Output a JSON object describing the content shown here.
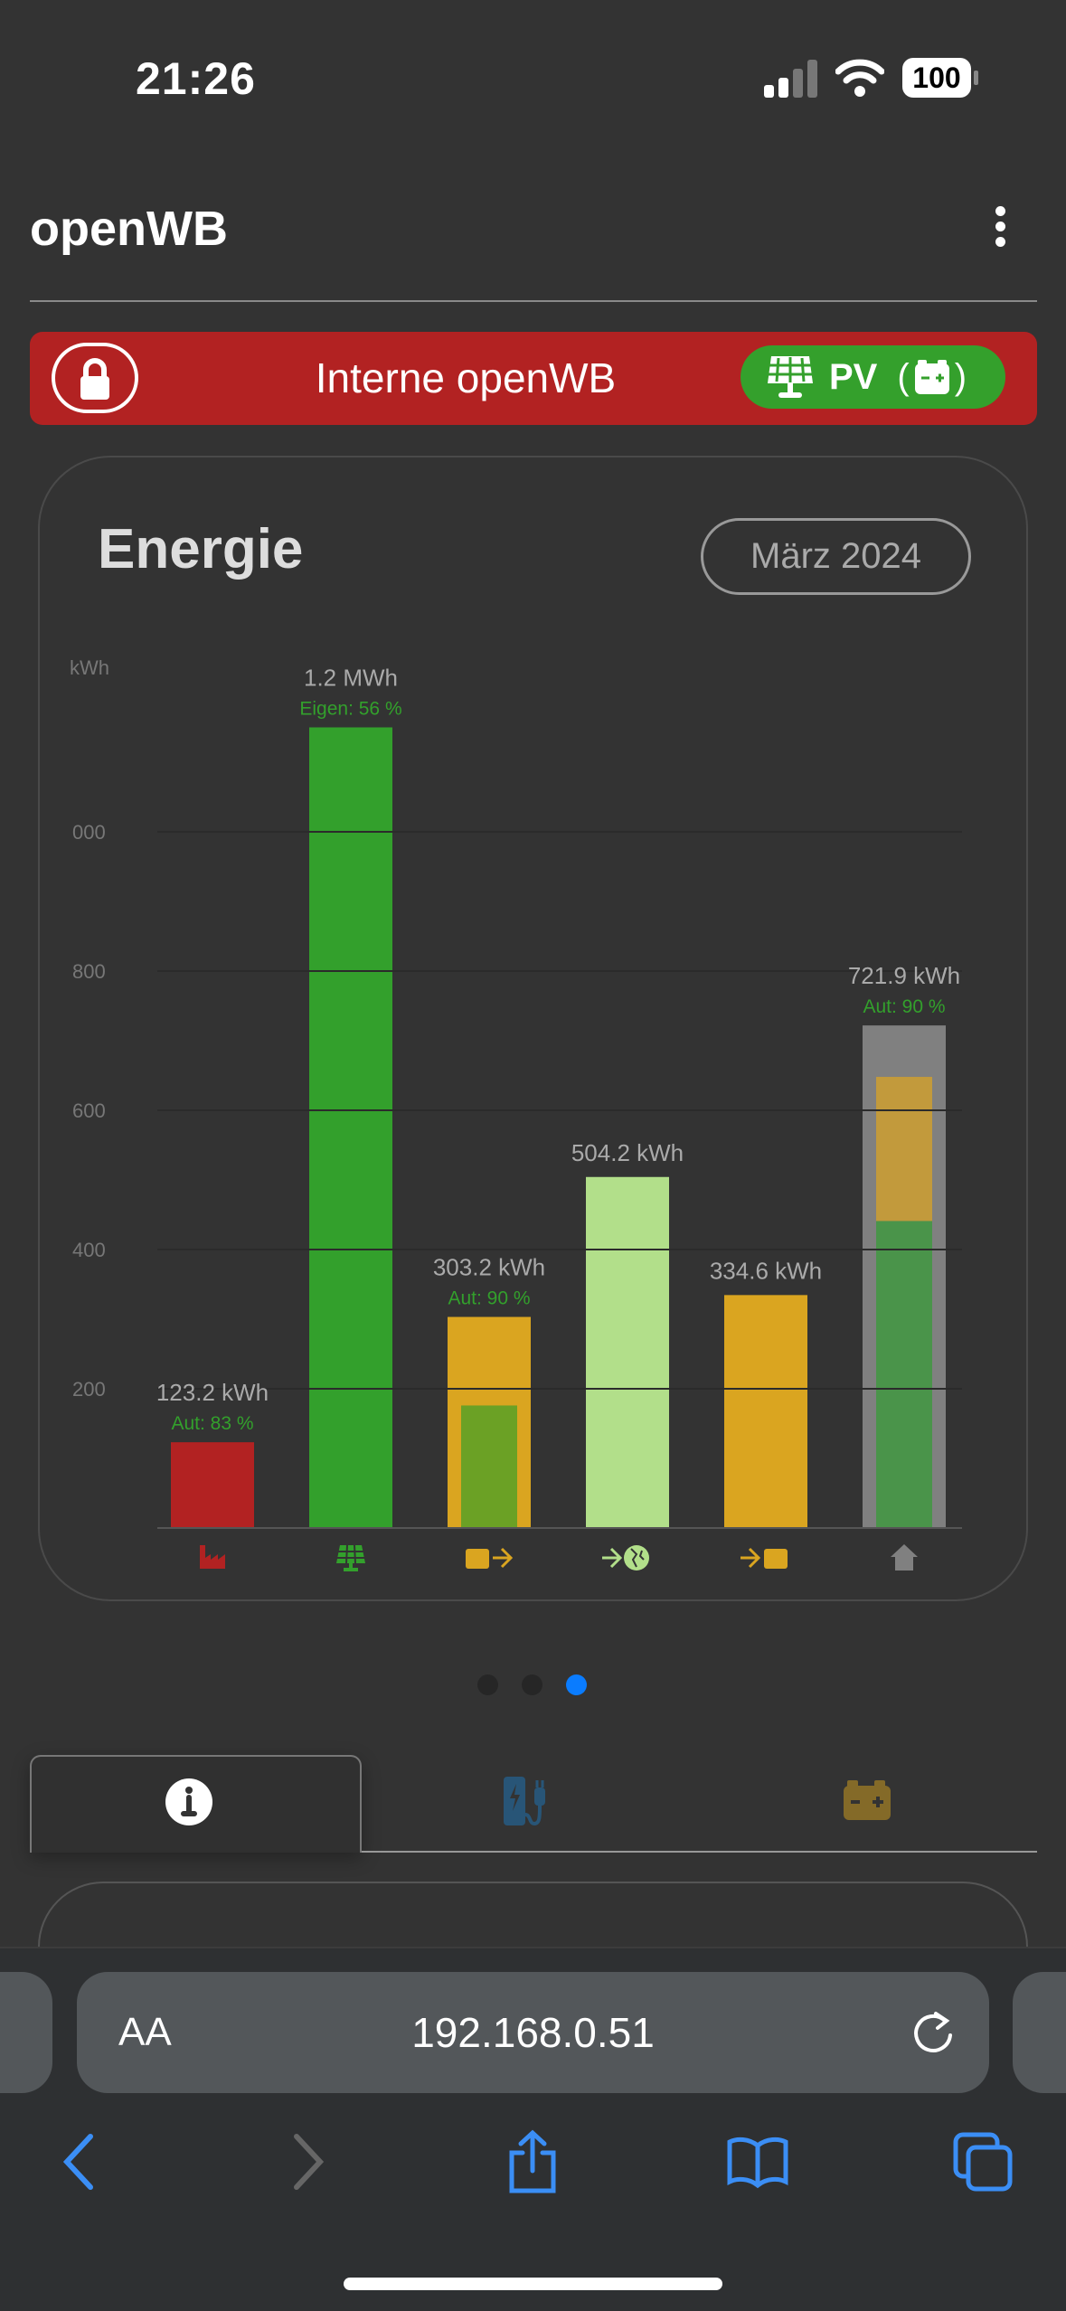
{
  "status_bar": {
    "time": "21:26",
    "battery": "100"
  },
  "header": {
    "title": "openWB"
  },
  "banner": {
    "title": "Interne openWB",
    "mode_label": "PV",
    "mode_suffix_open": "(",
    "mode_suffix_close": ")",
    "color": "#b22222",
    "mode_color": "#34a02c"
  },
  "energy_card": {
    "title": "Energie",
    "date_button": "März 2024"
  },
  "chart_data": {
    "type": "bar",
    "ylabel": "kWh",
    "yticks": [
      "200",
      "400",
      "600",
      "800",
      "000"
    ],
    "ytick_values": [
      200,
      400,
      600,
      800,
      1000
    ],
    "ylim": [
      0,
      1250
    ],
    "grid": true,
    "categories": [
      "grid-import",
      "pv",
      "battery-discharge",
      "grid-export",
      "battery-charge",
      "house"
    ],
    "icons": [
      "factory-icon",
      "solar-panel-icon",
      "battery-out-icon",
      "export-globe-icon",
      "battery-in-icon",
      "house-icon"
    ],
    "values": [
      123.2,
      1150,
      303.2,
      504.2,
      334.6,
      721.9
    ],
    "labels": [
      "123.2 kWh",
      "1.2 MWh",
      "303.2 kWh",
      "504.2 kWh",
      "334.6 kWh",
      "721.9 kWh"
    ],
    "sublabels": [
      "Aut: 83 %",
      "Eigen: 56 %",
      "Aut: 90 %",
      "",
      "",
      "Aut: 90 %"
    ],
    "colors": [
      "#b22222",
      "#33a02c",
      "#daa520",
      "#b2df8a",
      "#daa520",
      "#808080"
    ],
    "inner_segments": [
      [],
      [],
      [
        {
          "value": 176,
          "color": "#6ba125"
        }
      ],
      [],
      [],
      [
        {
          "value": 441,
          "color": "#4a944a"
        },
        {
          "value": 207,
          "color": "#c29a3c"
        }
      ]
    ]
  },
  "pager": {
    "count": 3,
    "active": 2
  },
  "tabs": [
    {
      "icon": "info-icon",
      "active": true
    },
    {
      "icon": "charge-point-icon",
      "active": false
    },
    {
      "icon": "battery-icon",
      "active": false
    }
  ],
  "browser": {
    "aa_label": "AA",
    "url": "192.168.0.51"
  }
}
